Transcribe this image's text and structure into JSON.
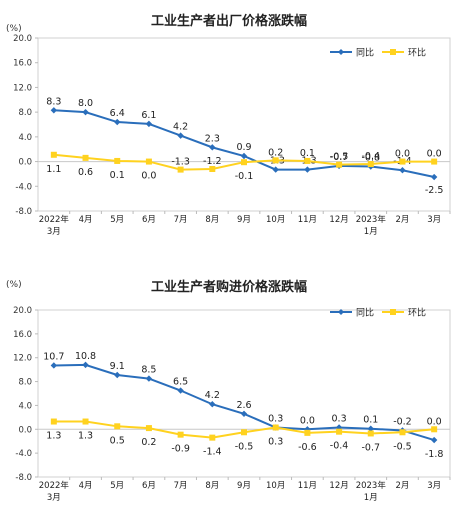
{
  "colors": {
    "yoy": "#2a6ebb",
    "mom": "#ffd21f"
  },
  "chart_data": [
    {
      "type": "line",
      "title": "工业生产者出厂价格涨跌幅",
      "unit": "(%)",
      "categories": [
        "2022年3月",
        "4月",
        "5月",
        "6月",
        "7月",
        "8月",
        "9月",
        "10月",
        "11月",
        "12月",
        "2023年1月",
        "2月",
        "3月"
      ],
      "category_lines": [
        [
          "2022年",
          "3月"
        ],
        [
          "4月"
        ],
        [
          "5月"
        ],
        [
          "6月"
        ],
        [
          "7月"
        ],
        [
          "8月"
        ],
        [
          "9月"
        ],
        [
          "10月"
        ],
        [
          "11月"
        ],
        [
          "12月"
        ],
        [
          "2023年",
          "1月"
        ],
        [
          "2月"
        ],
        [
          "3月"
        ]
      ],
      "ylim": [
        -8.0,
        20.0
      ],
      "yticks": [
        "20.0",
        "16.0",
        "12.0",
        "8.0",
        "4.0",
        "0.0",
        "-4.0",
        "-8.0"
      ],
      "legend_position": "top-right",
      "series": [
        {
          "name": "同比",
          "values": [
            8.3,
            8.0,
            6.4,
            6.1,
            4.2,
            2.3,
            0.9,
            -1.3,
            -1.3,
            -0.7,
            -0.8,
            -1.4,
            -2.5
          ],
          "labels": [
            "8.3",
            "8.0",
            "6.4",
            "6.1",
            "4.2",
            "2.3",
            "0.9",
            "-1.3",
            "-1.3",
            "-0.7",
            "-0.8",
            "-1.4",
            "-2.5"
          ]
        },
        {
          "name": "环比",
          "values": [
            1.1,
            0.6,
            0.1,
            0.0,
            -1.3,
            -1.2,
            -0.1,
            0.2,
            0.1,
            -0.5,
            -0.4,
            0.0,
            0.0
          ],
          "labels": [
            "1.1",
            "0.6",
            "0.1",
            "0.0",
            "-1.3",
            "-1.2",
            "-0.1",
            "0.2",
            "0.1",
            "-0.5",
            "-0.4",
            "0.0",
            "0.0"
          ]
        }
      ]
    },
    {
      "type": "line",
      "title": "工业生产者购进价格涨跌幅",
      "unit": "(%)",
      "categories": [
        "2022年3月",
        "4月",
        "5月",
        "6月",
        "7月",
        "8月",
        "9月",
        "10月",
        "11月",
        "12月",
        "2023年1月",
        "2月",
        "3月"
      ],
      "category_lines": [
        [
          "2022年",
          "3月"
        ],
        [
          "4月"
        ],
        [
          "5月"
        ],
        [
          "6月"
        ],
        [
          "7月"
        ],
        [
          "8月"
        ],
        [
          "9月"
        ],
        [
          "10月"
        ],
        [
          "11月"
        ],
        [
          "12月"
        ],
        [
          "2023年",
          "1月"
        ],
        [
          "2月"
        ],
        [
          "3月"
        ]
      ],
      "ylim": [
        -8.0,
        20.0
      ],
      "yticks": [
        "20.0",
        "16.0",
        "12.0",
        "8.0",
        "4.0",
        "0.0",
        "-4.0",
        "-8.0"
      ],
      "legend_position": "top-right",
      "series": [
        {
          "name": "同比",
          "values": [
            10.7,
            10.8,
            9.1,
            8.5,
            6.5,
            4.2,
            2.6,
            0.3,
            0.0,
            0.3,
            0.1,
            -0.2,
            -1.8
          ],
          "labels": [
            "10.7",
            "10.8",
            "9.1",
            "8.5",
            "6.5",
            "4.2",
            "2.6",
            "0.3",
            "0.0",
            "0.3",
            "0.1",
            "-0.2",
            "-1.8"
          ]
        },
        {
          "name": "环比",
          "values": [
            1.3,
            1.3,
            0.5,
            0.2,
            -0.9,
            -1.4,
            -0.5,
            0.3,
            -0.6,
            -0.4,
            -0.7,
            -0.5,
            0.0
          ],
          "labels": [
            "1.3",
            "1.3",
            "0.5",
            "0.2",
            "-0.9",
            "-1.4",
            "-0.5",
            "0.3",
            "-0.6",
            "-0.4",
            "-0.7",
            "-0.5",
            "0.0"
          ]
        }
      ]
    }
  ]
}
